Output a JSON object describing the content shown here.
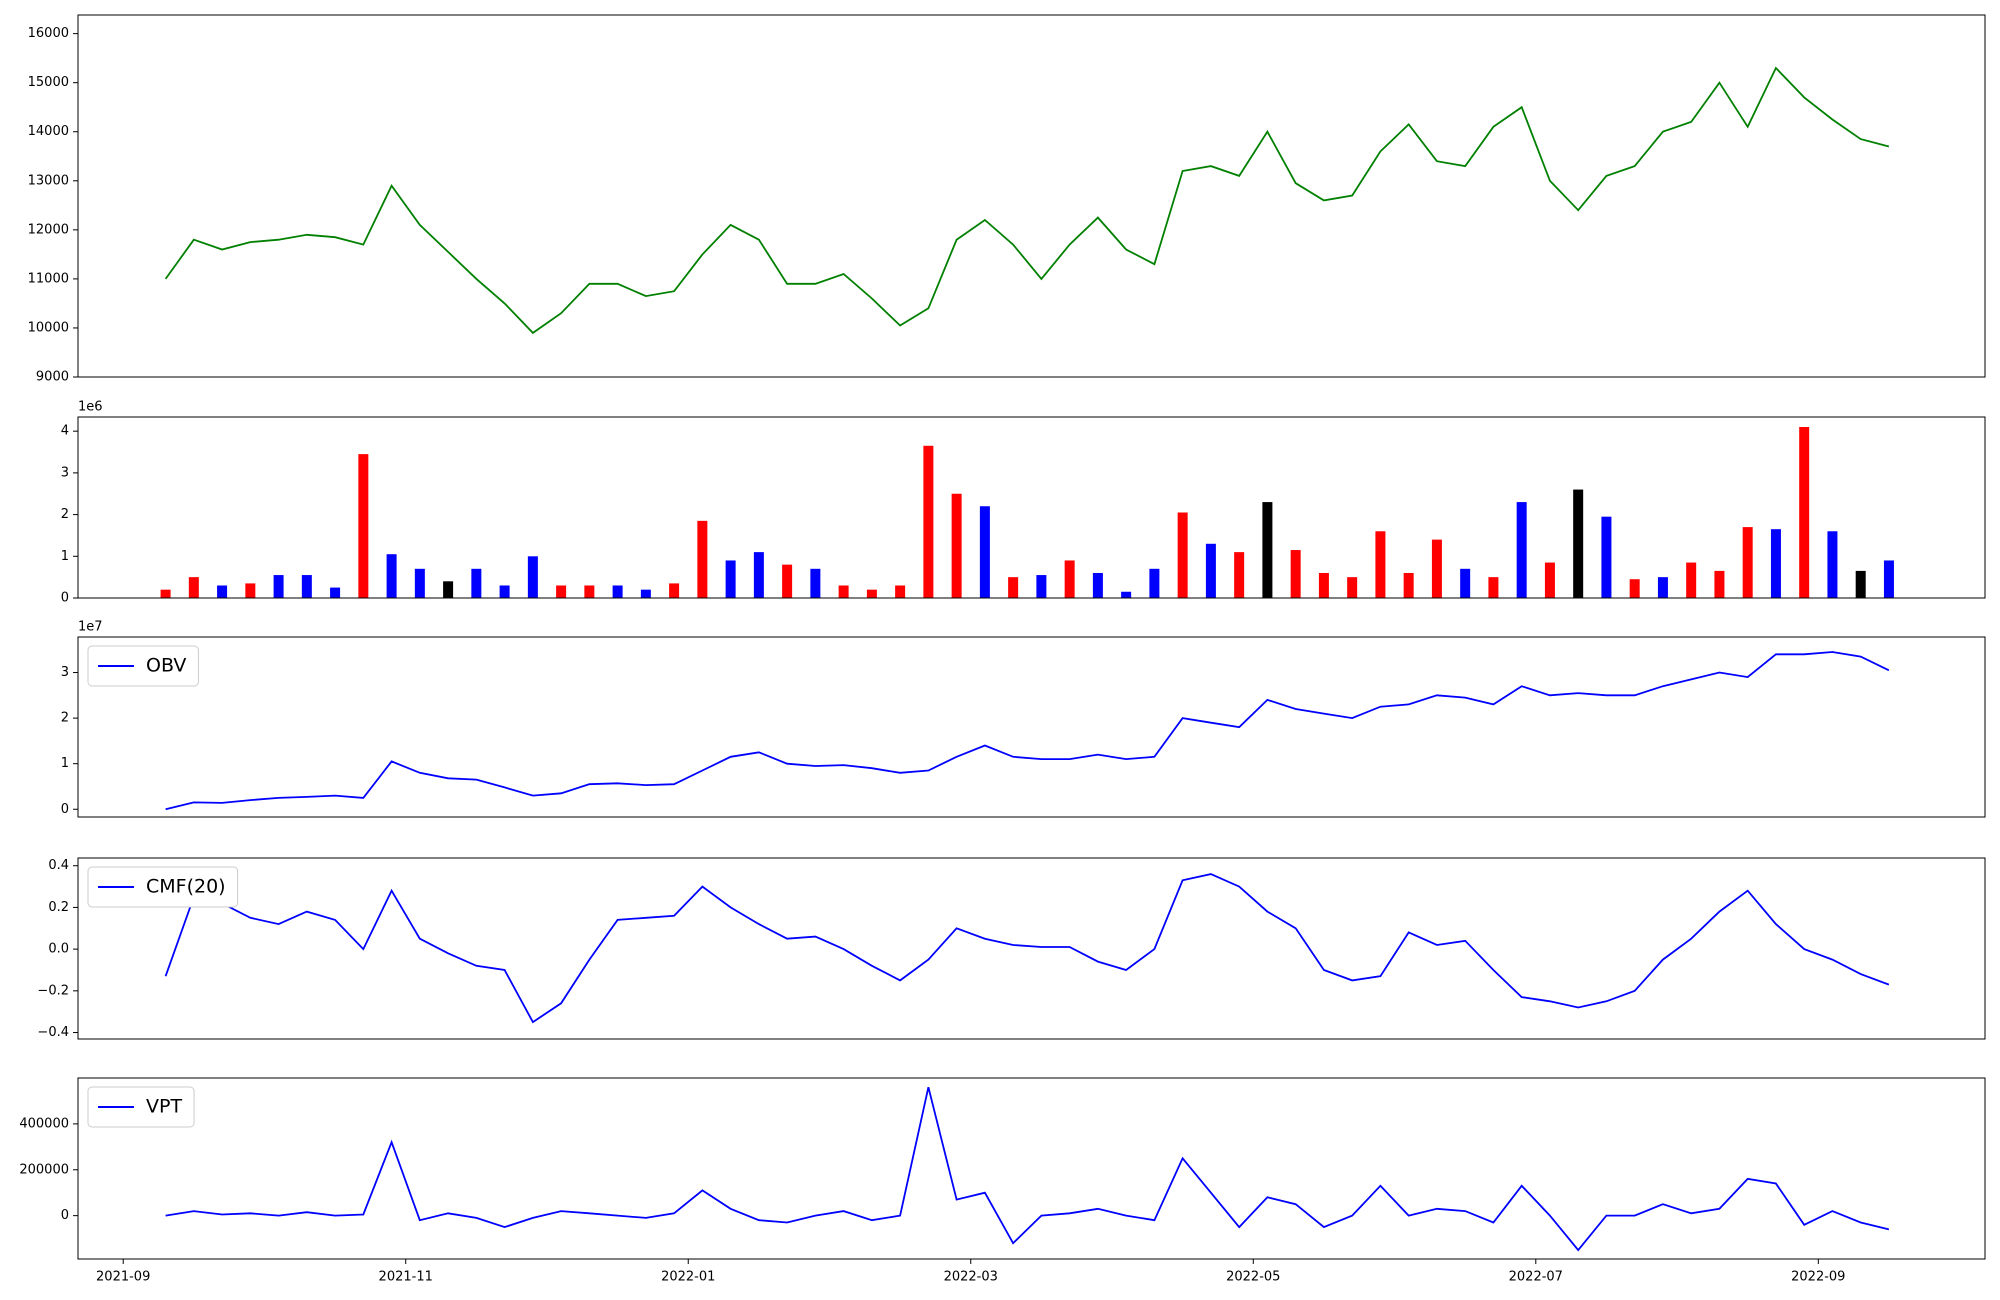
{
  "chart_data": [
    {
      "type": "line",
      "x": [
        0.3,
        0.5,
        0.7,
        0.9,
        1.1,
        1.3,
        1.5,
        1.7,
        1.9,
        2.1,
        2.3,
        2.5,
        2.7,
        2.9,
        3.1,
        3.3,
        3.5,
        3.7,
        3.9,
        4.1,
        4.3,
        4.5,
        4.7,
        4.9,
        5.1,
        5.3,
        5.5,
        5.7,
        5.9,
        6.1,
        6.3,
        6.5,
        6.7,
        6.9,
        7.1,
        7.3,
        7.5,
        7.7,
        7.9,
        8.1,
        8.3,
        8.5,
        8.7,
        8.9,
        9.1,
        9.3,
        9.5,
        9.7,
        9.9,
        10.1,
        10.3,
        10.5,
        10.7,
        10.9,
        11.1,
        11.3,
        11.5,
        11.7,
        11.9,
        12.1,
        12.3,
        12.5
      ],
      "series": [
        {
          "color": "green",
          "values": [
            11000,
            11800,
            11600,
            11750,
            11800,
            11900,
            11850,
            11700,
            12900,
            12100,
            11550,
            11000,
            10500,
            9900,
            10300,
            10900,
            10900,
            10650,
            10750,
            11500,
            12100,
            11800,
            10900,
            10900,
            11100,
            10600,
            10050,
            10400,
            11800,
            12200,
            11700,
            11000,
            11700,
            12250,
            11600,
            11300,
            13200,
            13300,
            13100,
            14000,
            12950,
            12600,
            12700,
            13600,
            14150,
            13400,
            13300,
            14100,
            14500,
            13000,
            12400,
            13100,
            13300,
            14000,
            14200,
            15000,
            14100,
            15300,
            14700,
            14250,
            13850,
            13700
          ]
        }
      ],
      "xlim": [
        -0.32,
        13.18
      ],
      "ylim": [
        9000,
        16380
      ],
      "yticks": [
        9000,
        10000,
        11000,
        12000,
        13000,
        14000,
        15000,
        16000
      ]
    },
    {
      "type": "bar",
      "x": [
        0.3,
        0.5,
        0.7,
        0.9,
        1.1,
        1.3,
        1.5,
        1.7,
        1.9,
        2.1,
        2.3,
        2.5,
        2.7,
        2.9,
        3.1,
        3.3,
        3.5,
        3.7,
        3.9,
        4.1,
        4.3,
        4.5,
        4.7,
        4.9,
        5.1,
        5.3,
        5.5,
        5.7,
        5.9,
        6.1,
        6.3,
        6.5,
        6.7,
        6.9,
        7.1,
        7.3,
        7.5,
        7.7,
        7.9,
        8.1,
        8.3,
        8.5,
        8.7,
        8.9,
        9.1,
        9.3,
        9.5,
        9.7,
        9.9,
        10.1,
        10.3,
        10.5,
        10.7,
        10.9,
        11.1,
        11.3,
        11.5,
        11.7,
        11.9,
        12.1,
        12.3,
        12.5
      ],
      "values": [
        200000,
        500000,
        300000,
        350000,
        550000,
        550000,
        250000,
        3450000,
        1050000,
        700000,
        400000,
        700000,
        300000,
        1000000,
        300000,
        300000,
        300000,
        200000,
        350000,
        1850000,
        900000,
        1100000,
        800000,
        700000,
        300000,
        200000,
        300000,
        3650000,
        2500000,
        2200000,
        500000,
        550000,
        900000,
        600000,
        150000,
        700000,
        2050000,
        1300000,
        1100000,
        2300000,
        1150000,
        600000,
        500000,
        1600000,
        600000,
        1400000,
        700000,
        500000,
        2300000,
        850000,
        2600000,
        1950000,
        450000,
        500000,
        850000,
        650000,
        1700000,
        1650000,
        4100000,
        1600000,
        650000,
        900000
      ],
      "colors": [
        "red",
        "red",
        "blue",
        "red",
        "blue",
        "blue",
        "blue",
        "red",
        "blue",
        "blue",
        "black",
        "blue",
        "blue",
        "blue",
        "red",
        "red",
        "blue",
        "blue",
        "red",
        "red",
        "blue",
        "blue",
        "red",
        "blue",
        "red",
        "red",
        "red",
        "red",
        "red",
        "blue",
        "red",
        "blue",
        "red",
        "blue",
        "blue",
        "blue",
        "red",
        "blue",
        "red",
        "black",
        "red",
        "red",
        "red",
        "red",
        "red",
        "red",
        "blue",
        "red",
        "blue",
        "red",
        "black",
        "blue",
        "red",
        "blue",
        "red",
        "red",
        "red",
        "blue",
        "red",
        "blue",
        "black",
        "blue"
      ],
      "xlim": [
        -0.32,
        13.18
      ],
      "ylim": [
        0,
        4340000
      ],
      "y_offset_label": "1e6",
      "yticks": [
        0,
        {
          "value": 1000000,
          "label": "1"
        },
        {
          "value": 2000000,
          "label": "2"
        },
        {
          "value": 3000000,
          "label": "3"
        },
        {
          "value": 4000000,
          "label": "4"
        }
      ]
    },
    {
      "type": "line",
      "x": [
        0.3,
        0.5,
        0.7,
        0.9,
        1.1,
        1.3,
        1.5,
        1.7,
        1.9,
        2.1,
        2.3,
        2.5,
        2.7,
        2.9,
        3.1,
        3.3,
        3.5,
        3.7,
        3.9,
        4.1,
        4.3,
        4.5,
        4.7,
        4.9,
        5.1,
        5.3,
        5.5,
        5.7,
        5.9,
        6.1,
        6.3,
        6.5,
        6.7,
        6.9,
        7.1,
        7.3,
        7.5,
        7.7,
        7.9,
        8.1,
        8.3,
        8.5,
        8.7,
        8.9,
        9.1,
        9.3,
        9.5,
        9.7,
        9.9,
        10.1,
        10.3,
        10.5,
        10.7,
        10.9,
        11.1,
        11.3,
        11.5,
        11.7,
        11.9,
        12.1,
        12.3,
        12.5
      ],
      "series": [
        {
          "name": "OBV",
          "color": "blue",
          "values": [
            0,
            1500000,
            1400000,
            2000000,
            2500000,
            2700000,
            3000000,
            2500000,
            10500000,
            8000000,
            6800000,
            6500000,
            4800000,
            3000000,
            3500000,
            5500000,
            5700000,
            5300000,
            5500000,
            8500000,
            11500000,
            12500000,
            10000000,
            9500000,
            9700000,
            9000000,
            8000000,
            8500000,
            11500000,
            14000000,
            11500000,
            11000000,
            11000000,
            12000000,
            11000000,
            11500000,
            20000000,
            19000000,
            18000000,
            24000000,
            22000000,
            21000000,
            20000000,
            22500000,
            23000000,
            25000000,
            24500000,
            23000000,
            27000000,
            25000000,
            25500000,
            25000000,
            25000000,
            27000000,
            28500000,
            30000000,
            29000000,
            34000000,
            34000000,
            34500000,
            33500000,
            30500000
          ]
        }
      ],
      "xlim": [
        -0.32,
        13.18
      ],
      "ylim": [
        -1700000,
        37800000
      ],
      "y_offset_label": "1e7",
      "legend": "upper left",
      "yticks": [
        0,
        {
          "value": 10000000,
          "label": "1"
        },
        {
          "value": 20000000,
          "label": "2"
        },
        {
          "value": 30000000,
          "label": "3"
        }
      ]
    },
    {
      "type": "line",
      "x": [
        0.3,
        0.5,
        0.7,
        0.9,
        1.1,
        1.3,
        1.5,
        1.7,
        1.9,
        2.1,
        2.3,
        2.5,
        2.7,
        2.9,
        3.1,
        3.3,
        3.5,
        3.7,
        3.9,
        4.1,
        4.3,
        4.5,
        4.7,
        4.9,
        5.1,
        5.3,
        5.5,
        5.7,
        5.9,
        6.1,
        6.3,
        6.5,
        6.7,
        6.9,
        7.1,
        7.3,
        7.5,
        7.7,
        7.9,
        8.1,
        8.3,
        8.5,
        8.7,
        8.9,
        9.1,
        9.3,
        9.5,
        9.7,
        9.9,
        10.1,
        10.3,
        10.5,
        10.7,
        10.9,
        11.1,
        11.3,
        11.5,
        11.7,
        11.9,
        12.1,
        12.3,
        12.5
      ],
      "series": [
        {
          "name": "CMF(20)",
          "color": "blue",
          "values": [
            -0.13,
            0.25,
            0.22,
            0.15,
            0.12,
            0.18,
            0.14,
            0,
            0.28,
            0.05,
            -0.02,
            -0.08,
            -0.1,
            -0.35,
            -0.26,
            -0.05,
            0.14,
            0.15,
            0.16,
            0.3,
            0.2,
            0.12,
            0.05,
            0.06,
            0,
            -0.08,
            -0.15,
            -0.05,
            0.1,
            0.05,
            0.02,
            0.01,
            0.01,
            -0.06,
            -0.1,
            0,
            0.33,
            0.36,
            0.3,
            0.18,
            0.1,
            -0.1,
            -0.15,
            -0.13,
            0.08,
            0.02,
            0.04,
            -0.1,
            -0.23,
            -0.25,
            -0.28,
            -0.25,
            -0.2,
            -0.05,
            0.05,
            0.18,
            0.28,
            0.12,
            0,
            -0.05,
            -0.12,
            -0.17
          ]
        }
      ],
      "xlim": [
        -0.32,
        13.18
      ],
      "ylim": [
        -0.431,
        0.437
      ],
      "legend": "upper left",
      "yticks": [
        {
          "value": -0.4,
          "label": "−0.4"
        },
        {
          "value": -0.2,
          "label": "−0.2"
        },
        {
          "value": 0,
          "label": "0.0"
        },
        0.2,
        0.4
      ]
    },
    {
      "type": "line",
      "x": [
        0.3,
        0.5,
        0.7,
        0.9,
        1.1,
        1.3,
        1.5,
        1.7,
        1.9,
        2.1,
        2.3,
        2.5,
        2.7,
        2.9,
        3.1,
        3.3,
        3.5,
        3.7,
        3.9,
        4.1,
        4.3,
        4.5,
        4.7,
        4.9,
        5.1,
        5.3,
        5.5,
        5.7,
        5.9,
        6.1,
        6.3,
        6.5,
        6.7,
        6.9,
        7.1,
        7.3,
        7.5,
        7.7,
        7.9,
        8.1,
        8.3,
        8.5,
        8.7,
        8.9,
        9.1,
        9.3,
        9.5,
        9.7,
        9.9,
        10.1,
        10.3,
        10.5,
        10.7,
        10.9,
        11.1,
        11.3,
        11.5,
        11.7,
        11.9,
        12.1,
        12.3,
        12.5
      ],
      "series": [
        {
          "name": "VPT",
          "color": "blue",
          "values": [
            0,
            20000,
            5000,
            10000,
            0,
            15000,
            0,
            5000,
            320000,
            -20000,
            10000,
            -10000,
            -50000,
            -10000,
            20000,
            10000,
            0,
            -10000,
            10000,
            110000,
            30000,
            -20000,
            -30000,
            0,
            20000,
            -20000,
            0,
            560000,
            70000,
            100000,
            -120000,
            0,
            10000,
            30000,
            0,
            -20000,
            250000,
            100000,
            -50000,
            80000,
            50000,
            -50000,
            0,
            130000,
            0,
            30000,
            20000,
            -30000,
            130000,
            0,
            -150000,
            0,
            0,
            50000,
            10000,
            30000,
            160000,
            140000,
            -40000,
            20000,
            -30000,
            -60000
          ]
        }
      ],
      "xlim": [
        -0.32,
        13.18
      ],
      "ylim": [
        -189000,
        600000
      ],
      "legend": "upper left",
      "yticks": [
        0,
        200000,
        400000
      ],
      "xticks": [
        {
          "value": 0,
          "label": "2021-09"
        },
        {
          "value": 2,
          "label": "2021-11"
        },
        {
          "value": 4,
          "label": "2022-01"
        },
        {
          "value": 6,
          "label": "2022-03"
        },
        {
          "value": 8,
          "label": "2022-05"
        },
        {
          "value": 10,
          "label": "2022-07"
        },
        {
          "value": 12,
          "label": "2022-09"
        }
      ]
    }
  ]
}
